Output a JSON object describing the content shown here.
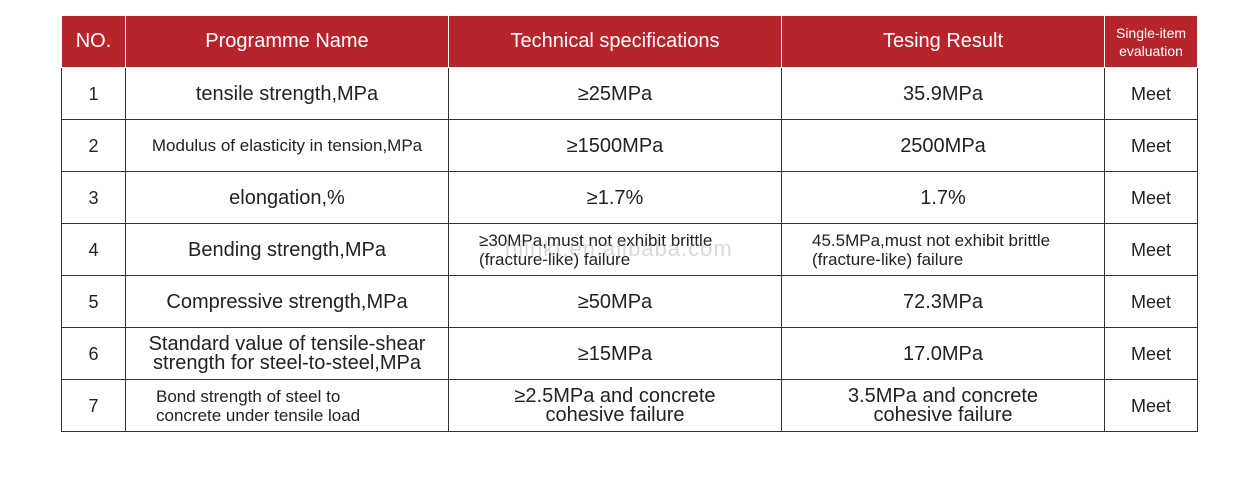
{
  "headers": {
    "no": "NO.",
    "name": "Programme Name",
    "spec": "Technical specifications",
    "result": "Tesing Result",
    "eval_line1": "Single-item",
    "eval_line2": "evaluation"
  },
  "rows": [
    {
      "no": "1",
      "name": "tensile strength,MPa",
      "spec": "≥25MPa",
      "result": "35.9MPa",
      "eval": "Meet"
    },
    {
      "no": "2",
      "name": "Modulus of elasticity in tension,MPa",
      "spec": "≥1500MPa",
      "result": "2500MPa",
      "eval": "Meet"
    },
    {
      "no": "3",
      "name": "elongation,%",
      "spec": "≥1.7%",
      "result": "1.7%",
      "eval": "Meet"
    },
    {
      "no": "4",
      "name": "Bending strength,MPa",
      "spec_line1": "≥30MPa,must not exhibit brittle",
      "spec_line2": "(fracture-like) failure",
      "result_line1": "45.5MPa,must not exhibit brittle",
      "result_line2": "(fracture-like) failure",
      "eval": "Meet"
    },
    {
      "no": "5",
      "name": "Compressive strength,MPa",
      "spec": "≥50MPa",
      "result": "72.3MPa",
      "eval": "Meet"
    },
    {
      "no": "6",
      "name_line1": "Standard value of tensile-shear",
      "name_line2": "strength for steel-to-steel,MPa",
      "spec": "≥15MPa",
      "result": "17.0MPa",
      "eval": "Meet"
    },
    {
      "no": "7",
      "name_line1": "Bond strength of steel to",
      "name_line2": "concrete under tensile load",
      "spec_line1": "≥2.5MPa and concrete",
      "spec_line2": "cohesive failure",
      "result_line1": "3.5MPa and concrete",
      "result_line2": "cohesive failure",
      "eval": "Meet"
    }
  ],
  "watermark": "hjlnkt.en.alibaba.com",
  "colors": {
    "header_bg": "#b8242c",
    "header_text": "#ffffff",
    "border": "#333333"
  }
}
